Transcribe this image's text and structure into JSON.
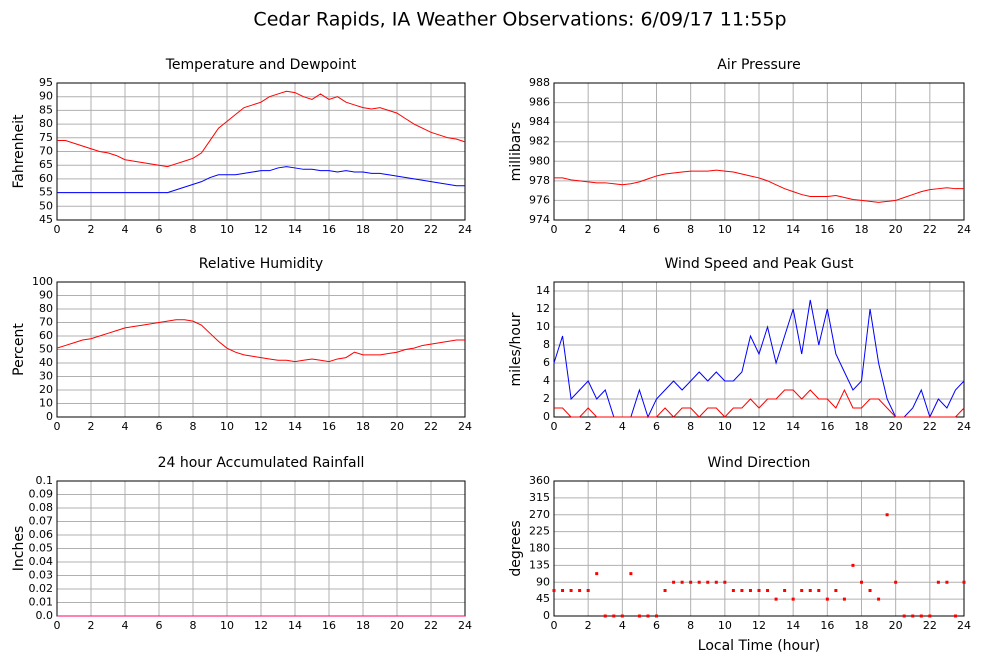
{
  "title": "Cedar Rapids, IA Weather Observations: 6/09/17 11:55p",
  "chart_data": [
    {
      "type": "line",
      "title": "Temperature and Dewpoint",
      "ylabel": "Fahrenheit",
      "grid": true,
      "xlim": [
        0,
        24
      ],
      "xticks": [
        0,
        2,
        4,
        6,
        8,
        10,
        12,
        14,
        16,
        18,
        20,
        22,
        24
      ],
      "ylim": [
        45,
        95
      ],
      "yticks": [
        45,
        50,
        55,
        60,
        65,
        70,
        75,
        80,
        85,
        90,
        95
      ],
      "x": [
        0,
        0.5,
        1,
        1.5,
        2,
        2.5,
        3,
        3.5,
        4,
        4.5,
        5,
        5.5,
        6,
        6.5,
        7,
        7.5,
        8,
        8.5,
        9,
        9.5,
        10,
        10.5,
        11,
        11.5,
        12,
        12.5,
        13,
        13.5,
        14,
        14.5,
        15,
        15.5,
        16,
        16.5,
        17,
        17.5,
        18,
        18.5,
        19,
        19.5,
        20,
        20.5,
        21,
        21.5,
        22,
        22.5,
        23,
        23.5,
        24
      ],
      "series": [
        {
          "color": "#ff0000",
          "values": [
            74,
            74,
            73,
            72,
            71,
            70,
            69.5,
            68.5,
            67,
            66.5,
            66,
            65.5,
            65,
            64.5,
            65.5,
            66.5,
            67.5,
            69.5,
            74,
            78.5,
            81,
            83.5,
            86,
            87,
            88,
            90,
            91,
            92,
            91.5,
            90,
            89,
            91,
            89,
            90,
            88,
            87,
            86,
            85.5,
            86,
            85,
            84,
            82,
            80,
            78.5,
            77,
            76,
            75,
            74.5,
            73.5
          ]
        },
        {
          "color": "#0000ff",
          "values": [
            55,
            55,
            55,
            55,
            55,
            55,
            55,
            55,
            55,
            55,
            55,
            55,
            55,
            55,
            56,
            57,
            58,
            59,
            60.5,
            61.5,
            61.5,
            61.5,
            62,
            62.5,
            63,
            63,
            64,
            64.5,
            64,
            63.5,
            63.5,
            63,
            63,
            62.5,
            63,
            62.5,
            62.5,
            62,
            62,
            61.5,
            61,
            60.5,
            60,
            59.5,
            59,
            58.5,
            58,
            57.5,
            57.5
          ]
        }
      ]
    },
    {
      "type": "line",
      "title": "Air Pressure",
      "ylabel": "millibars",
      "grid": true,
      "xlim": [
        0,
        24
      ],
      "xticks": [
        0,
        2,
        4,
        6,
        8,
        10,
        12,
        14,
        16,
        18,
        20,
        22,
        24
      ],
      "ylim": [
        974,
        988
      ],
      "yticks": [
        974,
        976,
        978,
        980,
        982,
        984,
        986,
        988
      ],
      "x": [
        0,
        0.5,
        1,
        1.5,
        2,
        2.5,
        3,
        3.5,
        4,
        4.5,
        5,
        5.5,
        6,
        6.5,
        7,
        7.5,
        8,
        8.5,
        9,
        9.5,
        10,
        10.5,
        11,
        11.5,
        12,
        12.5,
        13,
        13.5,
        14,
        14.5,
        15,
        15.5,
        16,
        16.5,
        17,
        17.5,
        18,
        18.5,
        19,
        19.5,
        20,
        20.5,
        21,
        21.5,
        22,
        22.5,
        23,
        23.5,
        24
      ],
      "series": [
        {
          "color": "#ff0000",
          "values": [
            978.3,
            978.3,
            978.1,
            978,
            977.9,
            977.8,
            977.8,
            977.7,
            977.6,
            977.7,
            977.9,
            978.2,
            978.5,
            978.7,
            978.8,
            978.9,
            979,
            979,
            979,
            979.1,
            979,
            978.9,
            978.7,
            978.5,
            978.3,
            978,
            977.6,
            977.2,
            976.9,
            976.6,
            976.4,
            976.4,
            976.4,
            976.5,
            976.3,
            976.1,
            976,
            975.9,
            975.8,
            975.9,
            976,
            976.3,
            976.6,
            976.9,
            977.1,
            977.2,
            977.3,
            977.2,
            977.2
          ]
        }
      ]
    },
    {
      "type": "line",
      "title": "Relative Humidity",
      "ylabel": "Percent",
      "grid": true,
      "xlim": [
        0,
        24
      ],
      "xticks": [
        0,
        2,
        4,
        6,
        8,
        10,
        12,
        14,
        16,
        18,
        20,
        22,
        24
      ],
      "ylim": [
        0,
        100
      ],
      "yticks": [
        0,
        10,
        20,
        30,
        40,
        50,
        60,
        70,
        80,
        90,
        100
      ],
      "x": [
        0,
        0.5,
        1,
        1.5,
        2,
        2.5,
        3,
        3.5,
        4,
        4.5,
        5,
        5.5,
        6,
        6.5,
        7,
        7.5,
        8,
        8.5,
        9,
        9.5,
        10,
        10.5,
        11,
        11.5,
        12,
        12.5,
        13,
        13.5,
        14,
        14.5,
        15,
        15.5,
        16,
        16.5,
        17,
        17.5,
        18,
        18.5,
        19,
        19.5,
        20,
        20.5,
        21,
        21.5,
        22,
        22.5,
        23,
        23.5,
        24
      ],
      "series": [
        {
          "color": "#ff0000",
          "values": [
            51,
            53,
            55,
            57,
            58,
            60,
            62,
            64,
            66,
            67,
            68,
            69,
            70,
            71,
            72,
            72,
            71,
            68,
            62,
            56,
            51,
            48,
            46,
            45,
            44,
            43,
            42,
            42,
            41,
            42,
            43,
            42,
            41,
            43,
            44,
            48,
            46,
            46,
            46,
            47,
            48,
            50,
            51,
            53,
            54,
            55,
            56,
            57,
            57
          ]
        }
      ]
    },
    {
      "type": "line",
      "title": "Wind Speed and Peak Gust",
      "ylabel": "miles/hour",
      "grid": true,
      "xlim": [
        0,
        24
      ],
      "xticks": [
        0,
        2,
        4,
        6,
        8,
        10,
        12,
        14,
        16,
        18,
        20,
        22,
        24
      ],
      "ylim": [
        0,
        15
      ],
      "yticks": [
        0,
        2,
        4,
        6,
        8,
        10,
        12,
        14
      ],
      "x": [
        0,
        0.5,
        1,
        1.5,
        2,
        2.5,
        3,
        3.5,
        4,
        4.5,
        5,
        5.5,
        6,
        6.5,
        7,
        7.5,
        8,
        8.5,
        9,
        9.5,
        10,
        10.5,
        11,
        11.5,
        12,
        12.5,
        13,
        13.5,
        14,
        14.5,
        15,
        15.5,
        16,
        16.5,
        17,
        17.5,
        18,
        18.5,
        19,
        19.5,
        20,
        20.5,
        21,
        21.5,
        22,
        22.5,
        23,
        23.5,
        24
      ],
      "series": [
        {
          "color": "#0000ff",
          "values": [
            6,
            9,
            2,
            3,
            4,
            2,
            3,
            0,
            0,
            0,
            3,
            0,
            2,
            3,
            4,
            3,
            4,
            5,
            4,
            5,
            4,
            4,
            5,
            9,
            7,
            10,
            6,
            9,
            12,
            7,
            13,
            8,
            12,
            7,
            5,
            3,
            4,
            12,
            6,
            2,
            0,
            0,
            1,
            3,
            0,
            2,
            1,
            3,
            4
          ]
        },
        {
          "color": "#ff0000",
          "values": [
            1,
            1,
            0,
            0,
            1,
            0,
            0,
            0,
            0,
            0,
            0,
            0,
            0,
            1,
            0,
            1,
            1,
            0,
            1,
            1,
            0,
            1,
            1,
            2,
            1,
            2,
            2,
            3,
            3,
            2,
            3,
            2,
            2,
            1,
            3,
            1,
            1,
            2,
            2,
            1,
            0,
            0,
            0,
            0,
            0,
            0,
            0,
            0,
            1
          ]
        }
      ]
    },
    {
      "type": "line",
      "title": "24 hour Accumulated Rainfall",
      "ylabel": "Inches",
      "grid": true,
      "xlim": [
        0,
        24
      ],
      "xticks": [
        0,
        2,
        4,
        6,
        8,
        10,
        12,
        14,
        16,
        18,
        20,
        22,
        24
      ],
      "ylim": [
        0,
        0.1
      ],
      "yticks": [
        {
          "value": 0,
          "label": "0.0"
        },
        0.01,
        0.02,
        0.03,
        0.04,
        0.05,
        0.06,
        0.07,
        0.08,
        0.09,
        0.1
      ],
      "x": [
        0,
        24
      ],
      "series": [
        {
          "color": "#ff0066",
          "values": [
            0,
            0
          ]
        }
      ]
    },
    {
      "type": "scatter",
      "title": "Wind Direction",
      "ylabel": "degrees",
      "xlabel": "Local Time (hour)",
      "grid": true,
      "xlim": [
        0,
        24
      ],
      "xticks": [
        0,
        2,
        4,
        6,
        8,
        10,
        12,
        14,
        16,
        18,
        20,
        22,
        24
      ],
      "ylim": [
        0,
        360
      ],
      "yticks": [
        0,
        45,
        90,
        135,
        180,
        225,
        270,
        315,
        360
      ],
      "x": [
        0,
        0.5,
        1,
        1.5,
        2,
        2.5,
        3,
        3.5,
        4,
        4.5,
        5,
        5.5,
        6,
        6.5,
        7,
        7.5,
        8,
        8.5,
        9,
        9.5,
        10,
        10.5,
        11,
        11.5,
        12,
        12.5,
        13,
        13.5,
        14,
        14.5,
        15,
        15.5,
        16,
        16.5,
        17,
        17.5,
        18,
        18.5,
        19,
        19.5,
        20,
        20.5,
        21,
        21.5,
        22,
        22.5,
        23,
        23.5,
        24
      ],
      "series": [
        {
          "color": "#ff0000",
          "values": [
            68,
            68,
            68,
            68,
            68,
            113,
            0,
            0,
            0,
            113,
            0,
            0,
            0,
            68,
            90,
            90,
            90,
            90,
            90,
            90,
            90,
            68,
            68,
            68,
            68,
            68,
            45,
            68,
            45,
            68,
            68,
            68,
            45,
            68,
            45,
            135,
            90,
            68,
            45,
            270,
            90,
            0,
            0,
            0,
            0,
            90,
            90,
            0,
            90
          ]
        }
      ]
    }
  ]
}
